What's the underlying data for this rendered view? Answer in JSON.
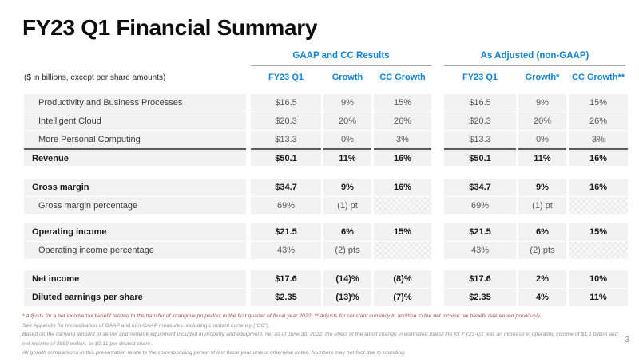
{
  "slide": {
    "title": "FY23 Q1 Financial Summary",
    "page_number": "3"
  },
  "colors": {
    "accent_blue": "#1284d6",
    "row_band_gray": "#f2f2f2",
    "footnote_red": "#a04a42",
    "sum_line_gray": "#5a5a5a"
  },
  "table": {
    "units_note": "($ in billions, except per share amounts)",
    "groups": [
      {
        "label": "GAAP and CC Results",
        "columns": [
          "FY23 Q1",
          "Growth",
          "CC Growth"
        ]
      },
      {
        "label": "As Adjusted (non-GAAP)",
        "columns": [
          "FY23 Q1",
          "Growth*",
          "CC Growth**"
        ]
      }
    ],
    "sections": [
      {
        "rows": [
          {
            "label": "Productivity and Business Processes",
            "bold": false,
            "gaap": [
              "$16.5",
              "9%",
              "15%"
            ],
            "adjusted": [
              "$16.5",
              "9%",
              "15%"
            ]
          },
          {
            "label": "Intelligent Cloud",
            "bold": false,
            "gaap": [
              "$20.3",
              "20%",
              "26%"
            ],
            "adjusted": [
              "$20.3",
              "20%",
              "26%"
            ]
          },
          {
            "label": "More Personal Computing",
            "bold": false,
            "gaap": [
              "$13.3",
              "0%",
              "3%"
            ],
            "adjusted": [
              "$13.3",
              "0%",
              "3%"
            ]
          },
          {
            "label": "Revenue",
            "bold": true,
            "sum_line": true,
            "gaap": [
              "$50.1",
              "11%",
              "16%"
            ],
            "adjusted": [
              "$50.1",
              "11%",
              "16%"
            ]
          }
        ]
      },
      {
        "rows": [
          {
            "label": "Gross margin",
            "bold": true,
            "gaap": [
              "$34.7",
              "9%",
              "16%"
            ],
            "adjusted": [
              "$34.7",
              "9%",
              "16%"
            ]
          },
          {
            "label": "Gross margin percentage",
            "bold": false,
            "cc_hatched": true,
            "gaap": [
              "69%",
              "(1) pt",
              ""
            ],
            "adjusted": [
              "69%",
              "(1) pt",
              ""
            ]
          }
        ]
      },
      {
        "rows": [
          {
            "label": "Operating income",
            "bold": true,
            "gaap": [
              "$21.5",
              "6%",
              "15%"
            ],
            "adjusted": [
              "$21.5",
              "6%",
              "15%"
            ]
          },
          {
            "label": "Operating income percentage",
            "bold": false,
            "cc_hatched": true,
            "gaap": [
              "43%",
              "(2) pts",
              ""
            ],
            "adjusted": [
              "43%",
              "(2) pts",
              ""
            ]
          }
        ]
      },
      {
        "rows": [
          {
            "label": "Net income",
            "bold": true,
            "gaap": [
              "$17.6",
              "(14)%",
              "(8)%"
            ],
            "adjusted": [
              "$17.6",
              "2%",
              "10%"
            ]
          },
          {
            "label": "Diluted earnings per share",
            "bold": true,
            "gaap": [
              "$2.35",
              "(13)%",
              "(7)%"
            ],
            "adjusted": [
              "$2.35",
              "4%",
              "11%"
            ]
          }
        ]
      }
    ]
  },
  "footnotes": [
    "* Adjusts for a net income tax benefit related to the transfer of intangible properties in the first quarter of fiscal year 2022.  ** Adjusts for constant currency in addition to the net income tax benefit referenced previously.",
    "See Appendix for reconciliation of GAAP and non-GAAP measures, including constant currency (“CC”).",
    "Based on the carrying amount of server and network equipment included in property and equipment, net as of June 30, 2022, the effect of the latest change in estimated useful life for FY23-Q1 was an increase in operating income of $1.1 billion and net income of $859 million, or $0.11 per diluted share.",
    "All growth comparisons in this presentation relate to the corresponding period of last fiscal year unless otherwise noted. Numbers may not foot due to rounding."
  ]
}
